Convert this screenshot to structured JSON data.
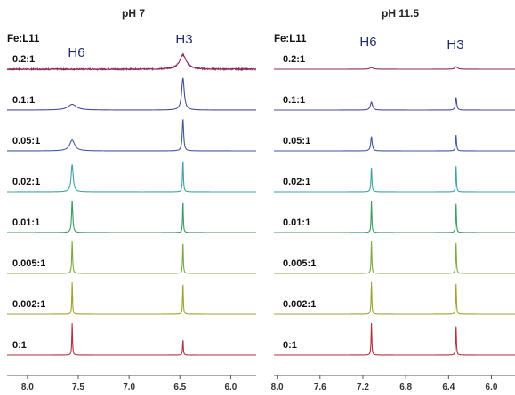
{
  "chart_data": [
    {
      "type": "line",
      "title": "pH 7",
      "legend_header": "Fe:L11",
      "xlabel": "",
      "ylabel": "",
      "xlim": [
        8.2,
        5.75
      ],
      "x_reversed": true,
      "x_ticks": [
        "8.0",
        "7.5",
        "7.0",
        "6.5",
        "6.0"
      ],
      "x_tick_values": [
        8.0,
        7.5,
        7.0,
        6.5,
        6.0
      ],
      "peak_labels": [
        {
          "text": "H6",
          "ppm": 7.56
        },
        {
          "text": "H3",
          "ppm": 6.47
        }
      ],
      "series": [
        {
          "name": "0.2:1",
          "color": "#8b2a5c",
          "peaks": [
            {
              "ppm": 7.56,
              "height": 0.0,
              "width": 0.05
            },
            {
              "ppm": 6.47,
              "height": 0.45,
              "width": 0.04
            }
          ],
          "noise": 0.035
        },
        {
          "name": "0.1:1",
          "color": "#4a4a9a",
          "peaks": [
            {
              "ppm": 7.56,
              "height": 0.18,
              "width": 0.05
            },
            {
              "ppm": 6.47,
              "height": 1.0,
              "width": 0.015
            }
          ],
          "noise": 0.0
        },
        {
          "name": "0.05:1",
          "color": "#3f5aa0",
          "peaks": [
            {
              "ppm": 7.56,
              "height": 0.34,
              "width": 0.03
            },
            {
              "ppm": 6.47,
              "height": 1.0,
              "width": 0.008
            }
          ],
          "noise": 0.0
        },
        {
          "name": "0.02:1",
          "color": "#40a0a8",
          "peaks": [
            {
              "ppm": 7.56,
              "height": 0.85,
              "width": 0.012
            },
            {
              "ppm": 6.47,
              "height": 1.0,
              "width": 0.005
            }
          ],
          "noise": 0.0
        },
        {
          "name": "0.01:1",
          "color": "#3a9a62",
          "peaks": [
            {
              "ppm": 7.56,
              "height": 1.0,
              "width": 0.007
            },
            {
              "ppm": 6.47,
              "height": 1.0,
              "width": 0.004
            }
          ],
          "noise": 0.0
        },
        {
          "name": "0.005:1",
          "color": "#7aa840",
          "peaks": [
            {
              "ppm": 7.56,
              "height": 1.0,
              "width": 0.005
            },
            {
              "ppm": 6.47,
              "height": 1.0,
              "width": 0.004
            }
          ],
          "noise": 0.0
        },
        {
          "name": "0.002:1",
          "color": "#a0a030",
          "peaks": [
            {
              "ppm": 7.56,
              "height": 1.0,
              "width": 0.004
            },
            {
              "ppm": 6.47,
              "height": 1.0,
              "width": 0.004
            }
          ],
          "noise": 0.0
        },
        {
          "name": "0:1",
          "color": "#b03040",
          "peaks": [
            {
              "ppm": 7.56,
              "height": 1.0,
              "width": 0.004
            },
            {
              "ppm": 6.47,
              "height": 0.5,
              "width": 0.004
            }
          ],
          "noise": 0.0
        }
      ]
    },
    {
      "type": "line",
      "title": "pH   11.5",
      "legend_header": "Fe:L11",
      "xlabel": "",
      "ylabel": "",
      "xlim": [
        8.03,
        5.78
      ],
      "x_reversed": true,
      "x_ticks": [
        "8.0",
        "7.6",
        "7.2",
        "6.8",
        "6.4",
        "6.0"
      ],
      "x_tick_values": [
        8.0,
        7.6,
        7.2,
        6.8,
        6.4,
        6.0
      ],
      "peak_labels": [
        {
          "text": "H6",
          "ppm": 7.12
        },
        {
          "text": "H3",
          "ppm": 6.33
        }
      ],
      "series": [
        {
          "name": "0.2:1",
          "color": "#8b2a5c",
          "peaks": [
            {
              "ppm": 7.12,
              "height": 0.05,
              "width": 0.02
            },
            {
              "ppm": 6.33,
              "height": 0.08,
              "width": 0.015
            }
          ],
          "noise": 0.0
        },
        {
          "name": "0.1:1",
          "color": "#4a4a9a",
          "peaks": [
            {
              "ppm": 7.12,
              "height": 0.25,
              "width": 0.012
            },
            {
              "ppm": 6.33,
              "height": 0.4,
              "width": 0.007
            }
          ],
          "noise": 0.0
        },
        {
          "name": "0.05:1",
          "color": "#3f5aa0",
          "peaks": [
            {
              "ppm": 7.12,
              "height": 0.45,
              "width": 0.008
            },
            {
              "ppm": 6.33,
              "height": 0.5,
              "width": 0.005
            }
          ],
          "noise": 0.0
        },
        {
          "name": "0.02:1",
          "color": "#40a0a8",
          "peaks": [
            {
              "ppm": 7.12,
              "height": 0.75,
              "width": 0.005
            },
            {
              "ppm": 6.33,
              "height": 0.8,
              "width": 0.004
            }
          ],
          "noise": 0.0
        },
        {
          "name": "0.01:1",
          "color": "#3a9a62",
          "peaks": [
            {
              "ppm": 7.12,
              "height": 1.0,
              "width": 0.004
            },
            {
              "ppm": 6.33,
              "height": 0.9,
              "width": 0.004
            }
          ],
          "noise": 0.0
        },
        {
          "name": "0.005:1",
          "color": "#7aa840",
          "peaks": [
            {
              "ppm": 7.12,
              "height": 1.0,
              "width": 0.004
            },
            {
              "ppm": 6.33,
              "height": 0.95,
              "width": 0.004
            }
          ],
          "noise": 0.0
        },
        {
          "name": "0.002:1",
          "color": "#a0a030",
          "peaks": [
            {
              "ppm": 7.12,
              "height": 1.0,
              "width": 0.004
            },
            {
              "ppm": 6.33,
              "height": 0.95,
              "width": 0.004
            }
          ],
          "noise": 0.0
        },
        {
          "name": "0:1",
          "color": "#b03040",
          "peaks": [
            {
              "ppm": 7.12,
              "height": 1.0,
              "width": 0.004
            },
            {
              "ppm": 6.33,
              "height": 0.9,
              "width": 0.004
            }
          ],
          "noise": 0.0
        }
      ]
    }
  ]
}
